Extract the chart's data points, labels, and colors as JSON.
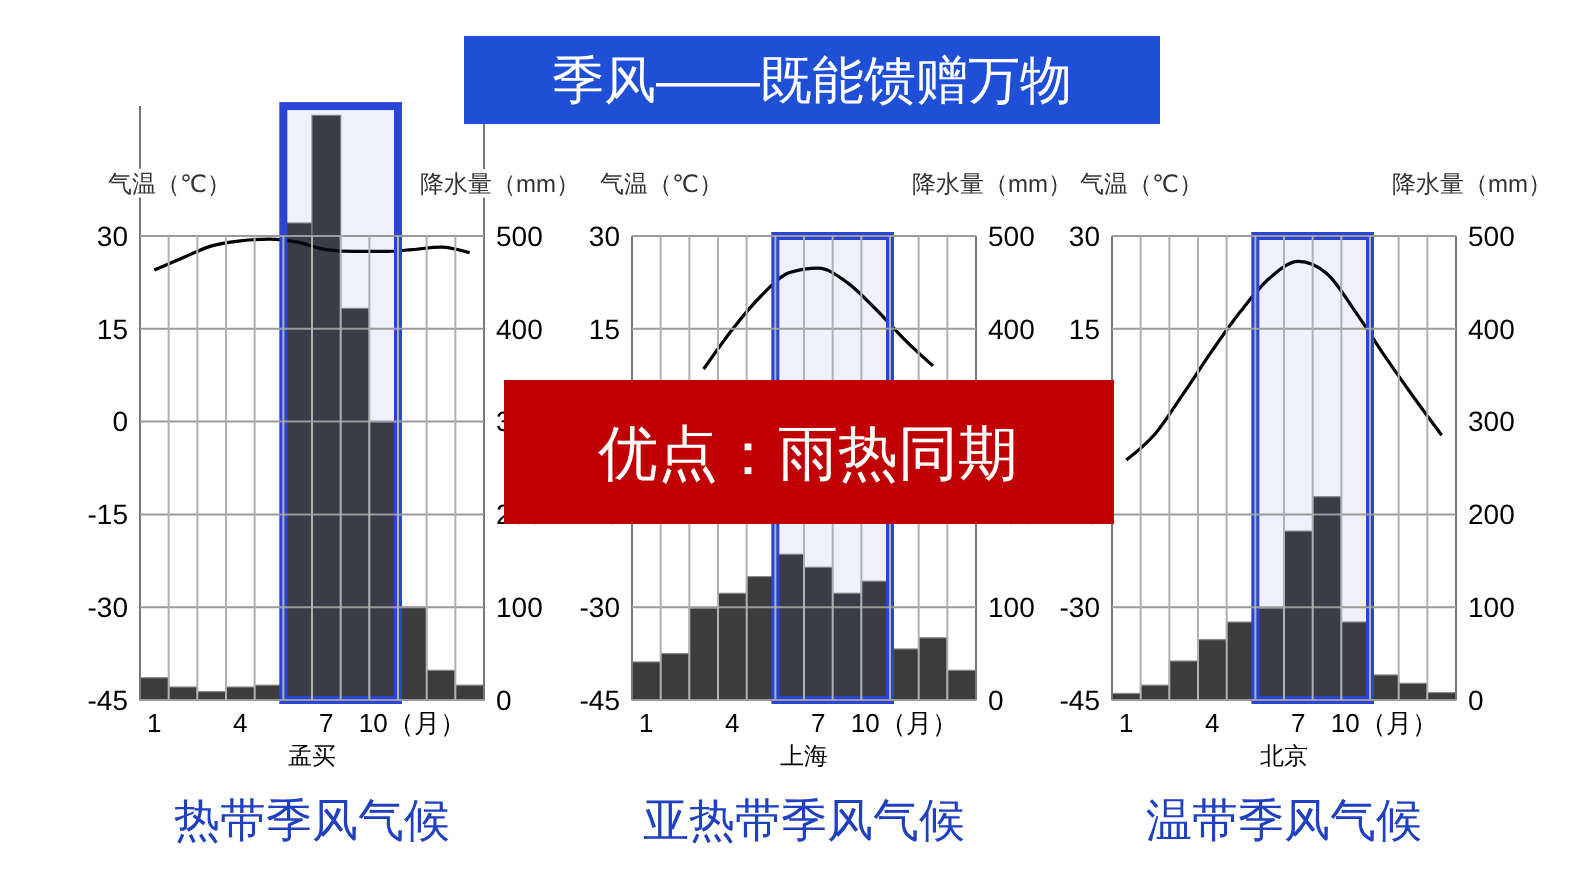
{
  "chart_data": [
    {
      "type": "bar",
      "title": "热带季风气候",
      "xlabel": "孟买",
      "ylabel": "气温（℃）",
      "y2label": "降水量（mm）",
      "x": [
        1,
        2,
        3,
        4,
        5,
        6,
        7,
        8,
        9,
        10,
        11,
        12
      ],
      "xlim": [
        0.5,
        12.5
      ],
      "xticks": [
        1,
        4,
        7,
        {
          "value": 10,
          "label": "10（月）"
        },
        {
          "value": 1.5,
          "label": null
        },
        {
          "value": 2.5,
          "label": null
        },
        {
          "value": 3.5,
          "label": null
        },
        {
          "value": 4.5,
          "label": null
        },
        {
          "value": 5.5,
          "label": null
        },
        {
          "value": 6.5,
          "label": null
        },
        {
          "value": 7.5,
          "label": null
        },
        {
          "value": 8.5,
          "label": null
        },
        {
          "value": 9.5,
          "label": null
        },
        {
          "value": 10.5,
          "label": null
        },
        {
          "value": 11.5,
          "label": null
        }
      ],
      "ylim": [
        -45,
        51
      ],
      "yticks": [
        -45,
        -30,
        -15,
        0,
        15,
        30
      ],
      "y2lim": [
        0,
        640
      ],
      "y2ticks": [
        0,
        100,
        200,
        300,
        400,
        500
      ],
      "grid": true,
      "marker": "none",
      "bands": [
        {
          "axis": "x",
          "from": 5.5,
          "to": 9.5,
          "color": "#2b44d8"
        }
      ],
      "series": [
        {
          "axis": "y2",
          "color": "#3c3c3c",
          "values": [
            24,
            14,
            9,
            14,
            16,
            514,
            630,
            422,
            300,
            100,
            32,
            16
          ]
        },
        {
          "type": "line",
          "axis": "y",
          "color": "#000000",
          "values": [
            24.5,
            26.5,
            28.4,
            29.2,
            29.5,
            29,
            27.8,
            27.5,
            27.5,
            27.8,
            28.2,
            27.3
          ]
        }
      ]
    },
    {
      "type": "bar",
      "title": "亚热带季风气候",
      "xlabel": "上海",
      "ylabel": "气温（℃）",
      "y2label": "降水量（mm）",
      "x": [
        1,
        2,
        3,
        4,
        5,
        6,
        7,
        8,
        9,
        10,
        11,
        12
      ],
      "xlim": [
        0.5,
        12.5
      ],
      "xticks": [
        1,
        4,
        7,
        {
          "value": 10,
          "label": "10（月）"
        },
        {
          "value": 1.5,
          "label": null
        },
        {
          "value": 2.5,
          "label": null
        },
        {
          "value": 3.5,
          "label": null
        },
        {
          "value": 4.5,
          "label": null
        },
        {
          "value": 5.5,
          "label": null
        },
        {
          "value": 6.5,
          "label": null
        },
        {
          "value": 7.5,
          "label": null
        },
        {
          "value": 8.5,
          "label": null
        },
        {
          "value": 9.5,
          "label": null
        },
        {
          "value": 10.5,
          "label": null
        },
        {
          "value": 11.5,
          "label": null
        }
      ],
      "ylim": [
        -45,
        30
      ],
      "yticks": [
        -45,
        -30,
        -15,
        15,
        30
      ],
      "y2lim": [
        0,
        500
      ],
      "y2ticks": [
        0,
        100,
        200,
        400,
        500
      ],
      "grid": true,
      "marker": "none",
      "bands": [
        {
          "axis": "x",
          "from": 5.5,
          "to": 9.5,
          "color": "#2b44d8"
        }
      ],
      "annotations": [
        "季风——既能馈赠万物",
        "优点：雨热同期"
      ],
      "series": [
        {
          "axis": "y2",
          "color": "#3c3c3c",
          "values": [
            41,
            50,
            99,
            115,
            133,
            157,
            143,
            115,
            128,
            55,
            67,
            32
          ]
        },
        {
          "type": "line",
          "axis": "y",
          "color": "#000000",
          "values": [
            null,
            null,
            8.5,
            14.9,
            20.3,
            24.1,
            24.8,
            22.5,
            18.2,
            13.3,
            9,
            null
          ]
        }
      ]
    },
    {
      "type": "bar",
      "title": "温带季风气候",
      "xlabel": "北京",
      "ylabel": "气温（℃）",
      "y2label": "降水量（mm）",
      "x": [
        1,
        2,
        3,
        4,
        5,
        6,
        7,
        8,
        9,
        10,
        11,
        12
      ],
      "xlim": [
        0.5,
        12.5
      ],
      "xticks": [
        1,
        4,
        7,
        {
          "value": 10,
          "label": "10（月）"
        },
        {
          "value": 1.5,
          "label": null
        },
        {
          "value": 2.5,
          "label": null
        },
        {
          "value": 3.5,
          "label": null
        },
        {
          "value": 4.5,
          "label": null
        },
        {
          "value": 5.5,
          "label": null
        },
        {
          "value": 6.5,
          "label": null
        },
        {
          "value": 7.5,
          "label": null
        },
        {
          "value": 8.5,
          "label": null
        },
        {
          "value": 9.5,
          "label": null
        },
        {
          "value": 10.5,
          "label": null
        },
        {
          "value": 11.5,
          "label": null
        }
      ],
      "ylim": [
        -45,
        30
      ],
      "yticks": [
        -45,
        -30,
        -15,
        15,
        30
      ],
      "y2lim": [
        0,
        500
      ],
      "y2ticks": [
        0,
        100,
        200,
        300,
        400,
        500
      ],
      "grid": true,
      "marker": "none",
      "bands": [
        {
          "axis": "x",
          "from": 5.5,
          "to": 9.5,
          "color": "#2b44d8"
        }
      ],
      "series": [
        {
          "axis": "y2",
          "color": "#3c3c3c",
          "values": [
            7,
            16,
            42,
            65,
            84,
            99,
            182,
            219,
            84,
            27,
            18,
            8
          ]
        },
        {
          "type": "line",
          "axis": "y",
          "color": "#000000",
          "values": [
            -6.2,
            -2,
            4.6,
            11.5,
            17.9,
            23.2,
            25.9,
            23.9,
            17.7,
            10.7,
            4.1,
            -2.2
          ]
        }
      ]
    }
  ]
}
